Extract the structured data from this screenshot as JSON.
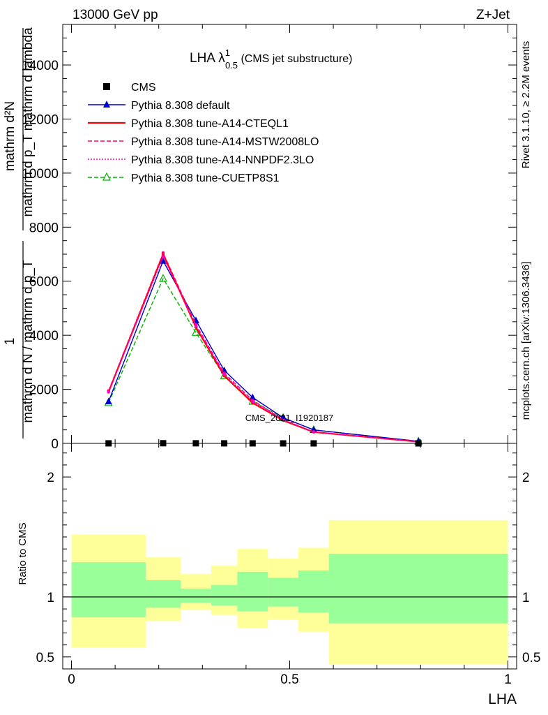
{
  "header": {
    "left": "13000 GeV pp",
    "right": "Z+Jet"
  },
  "title": {
    "prefix": "LHA λ",
    "sup": "1",
    "sub": "0.5",
    "suffix": " (CMS jet substructure)"
  },
  "side_labels": {
    "rivet": "Rivet 3.1.10, ≥ 2.2M events",
    "mcplots": "mcplots.cern.ch [arXiv:1306.3436]"
  },
  "watermark": "CMS_2021_I1920187",
  "ylabel_main": {
    "numerator": "mathrm d²N",
    "denominator": "mathrm d p_T mathrm d lambda",
    "one": "1",
    "prefactor": "mathrm d N / mathrm d p_T"
  },
  "xlabel": "LHA",
  "ylabel_ratio": "Ratio to CMS",
  "chart_data": [
    {
      "type": "line",
      "panel": "main",
      "ylim": [
        0,
        15500
      ],
      "xlim": [
        -0.02,
        1.02
      ],
      "yticks": [
        0,
        2000,
        4000,
        6000,
        8000,
        10000,
        12000,
        14000
      ],
      "ytick_labels": [
        "0",
        "2000",
        "4000",
        "6000",
        "8000",
        "10000",
        "12000",
        "14000"
      ],
      "x": [
        0.085,
        0.21,
        0.285,
        0.35,
        0.415,
        0.485,
        0.555,
        0.795
      ],
      "series": [
        {
          "name": "CMS",
          "style": "data",
          "color": "#000000",
          "marker": "square",
          "values": [
            1.5,
            5.6,
            3.8,
            2.1,
            1.1,
            0.55,
            0.33,
            0.06
          ]
        },
        {
          "name": "Pythia 8.308 default",
          "style": "solid",
          "color": "#0000cc",
          "marker": "triangle-filled",
          "values": [
            1550,
            6750,
            4550,
            2700,
            1700,
            950,
            500,
            80
          ]
        },
        {
          "name": "Pythia 8.308 tune-A14-CTEQL1",
          "style": "solid",
          "color": "#ff0000",
          "marker": "none",
          "values": [
            1900,
            7000,
            4300,
            2500,
            1500,
            850,
            420,
            60
          ]
        },
        {
          "name": "Pythia 8.308 tune-A14-MSTW2008LO",
          "style": "dashed",
          "color": "#ff0066",
          "marker": "none",
          "values": [
            1950,
            7050,
            4400,
            2600,
            1600,
            880,
            430,
            60
          ]
        },
        {
          "name": "Pythia 8.308 tune-A14-NNPDF2.3LO",
          "style": "dotted",
          "color": "#ff00cc",
          "marker": "none",
          "values": [
            1900,
            6900,
            4350,
            2550,
            1550,
            870,
            420,
            60
          ]
        },
        {
          "name": "Pythia 8.308 tune-CUETP8S1",
          "style": "dashed",
          "color": "#00b000",
          "marker": "triangle-open",
          "values": [
            1500,
            6100,
            4100,
            2500,
            1550,
            950,
            500,
            70
          ]
        }
      ]
    },
    {
      "type": "area",
      "panel": "ratio",
      "ylim": [
        0.4,
        2.28
      ],
      "xlim": [
        -0.02,
        1.02
      ],
      "yticks": [
        0.5,
        1,
        2
      ],
      "ytick_labels": [
        "0.5",
        "1",
        "2"
      ],
      "xticks": [
        0,
        0.5,
        1
      ],
      "xtick_labels": [
        "0",
        "0.5",
        "1"
      ],
      "reference": 1,
      "band_colors": {
        "outer": "#ffff99",
        "inner": "#99ff99"
      },
      "bins": [
        {
          "x": [
            0.0,
            0.17
          ],
          "inner": [
            0.83,
            1.29
          ],
          "outer": [
            0.58,
            1.52
          ]
        },
        {
          "x": [
            0.17,
            0.25
          ],
          "inner": [
            0.91,
            1.14
          ],
          "outer": [
            0.8,
            1.33
          ]
        },
        {
          "x": [
            0.25,
            0.32
          ],
          "inner": [
            0.95,
            1.07
          ],
          "outer": [
            0.89,
            1.19
          ]
        },
        {
          "x": [
            0.32,
            0.38
          ],
          "inner": [
            0.93,
            1.1
          ],
          "outer": [
            0.85,
            1.26
          ]
        },
        {
          "x": [
            0.38,
            0.45
          ],
          "inner": [
            0.88,
            1.21
          ],
          "outer": [
            0.74,
            1.4
          ]
        },
        {
          "x": [
            0.45,
            0.52
          ],
          "inner": [
            0.92,
            1.16
          ],
          "outer": [
            0.81,
            1.32
          ]
        },
        {
          "x": [
            0.52,
            0.59
          ],
          "inner": [
            0.87,
            1.22
          ],
          "outer": [
            0.71,
            1.41
          ]
        },
        {
          "x": [
            0.59,
            1.0
          ],
          "inner": [
            0.78,
            1.36
          ],
          "outer": [
            0.44,
            1.64
          ]
        }
      ]
    }
  ]
}
